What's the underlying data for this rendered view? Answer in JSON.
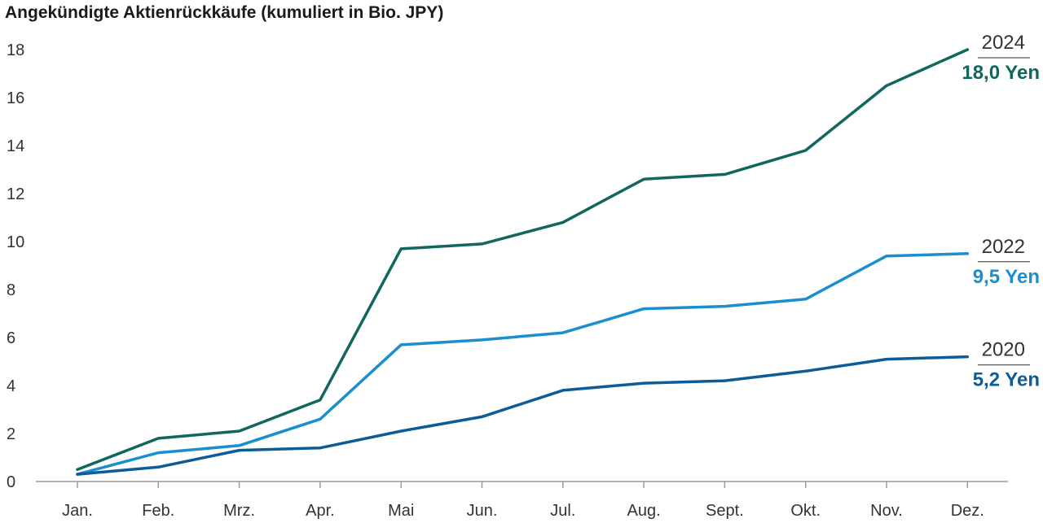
{
  "chart_data": {
    "type": "line",
    "title": "Angekündigte Aktienrückkäufe (kumuliert in Bio. JPY)",
    "xlabel": "",
    "ylabel": "",
    "categories": [
      "Jan.",
      "Feb.",
      "Mrz.",
      "Apr.",
      "Mai",
      "Jun.",
      "Jul.",
      "Aug.",
      "Sept.",
      "Okt.",
      "Nov.",
      "Dez."
    ],
    "ylim": [
      0,
      18
    ],
    "yticks": [
      0,
      2,
      4,
      6,
      8,
      10,
      12,
      14,
      16,
      18
    ],
    "grid": false,
    "series": [
      {
        "name": "2024",
        "end_label": "18,0 Yen",
        "color": "#11665e",
        "values": [
          0.5,
          1.8,
          2.1,
          3.4,
          9.7,
          9.9,
          10.8,
          12.6,
          12.8,
          13.8,
          16.5,
          18.0
        ]
      },
      {
        "name": "2022",
        "end_label": "9,5 Yen",
        "color": "#1a8fcf",
        "values": [
          0.3,
          1.2,
          1.5,
          2.6,
          5.7,
          5.9,
          6.2,
          7.2,
          7.3,
          7.6,
          9.4,
          9.5
        ]
      },
      {
        "name": "2020",
        "end_label": "5,2 Yen",
        "color": "#0b5c97",
        "values": [
          0.3,
          0.6,
          1.3,
          1.4,
          2.1,
          2.7,
          3.8,
          4.1,
          4.2,
          4.6,
          5.1,
          5.2
        ]
      }
    ]
  }
}
